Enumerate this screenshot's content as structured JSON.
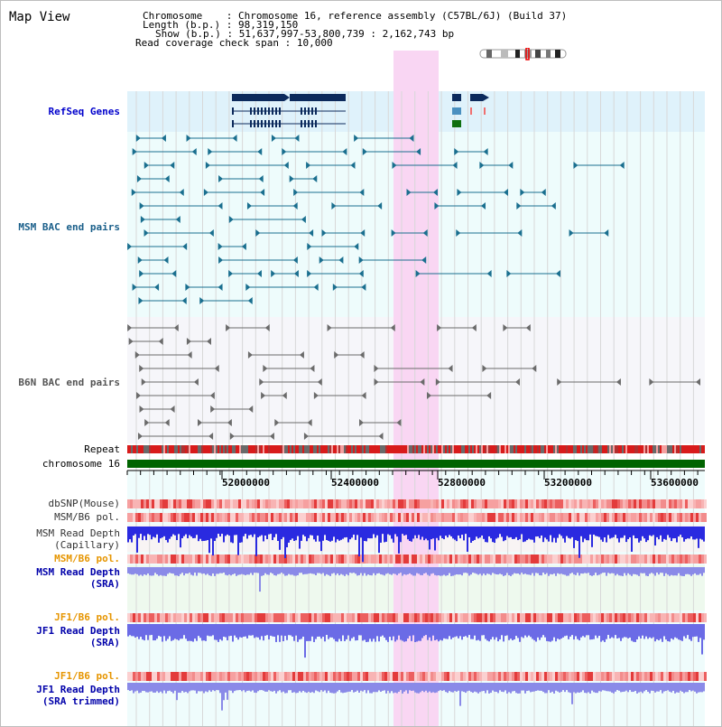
{
  "title": "Map View",
  "header": {
    "chromosome_key": "Chromosome",
    "chromosome_val": "Chromosome 16, reference assembly (C57BL/6J) (Build 37)",
    "length_key": "Length (b.p.)",
    "length_val": "98,319,150",
    "show_key": "Show (b.p.)",
    "show_val": "51,637,997-53,800,739 : 2,162,743 bp",
    "coverage_key": "Read coverage check span",
    "coverage_val": "10,000"
  },
  "tracks": {
    "refseq_genes": "RefSeq Genes",
    "msm_bac": "MSM BAC end pairs",
    "b6n_bac": "B6N BAC end pairs",
    "repeat": "Repeat",
    "chromosome": "chromosome 16",
    "dbsnp": "dbSNP(Mouse)",
    "msm_b6_pol_1": "MSM/B6 pol.",
    "msm_depth_cap_1": "MSM Read Depth",
    "msm_depth_cap_2": "(Capillary)",
    "msm_b6_pol_2": "MSM/B6 pol.",
    "msm_depth_sra_1": "MSM Read Depth",
    "msm_depth_sra_2": "(SRA)",
    "jf1_b6_pol_1": "JF1/B6 pol.",
    "jf1_depth_sra_1": "JF1 Read Depth",
    "jf1_depth_sra_2": "(SRA)",
    "jf1_b6_pol_2": "JF1/B6 pol.",
    "jf1_depth_trim_1": "JF1 Read Depth",
    "jf1_depth_trim_2": "(SRA trimmed)"
  },
  "axis": {
    "ticks": [
      "52000000",
      "52400000",
      "52800000",
      "53200000",
      "53600000"
    ]
  },
  "colors": {
    "refseq_label": "#0000cc",
    "msm_label": "#1a5f8a",
    "b6n_label": "#555555",
    "orange_label": "#e69500",
    "blue_label": "#0000aa",
    "highlight": "#f9d6f3",
    "chromosome_bar": "#006400"
  }
}
